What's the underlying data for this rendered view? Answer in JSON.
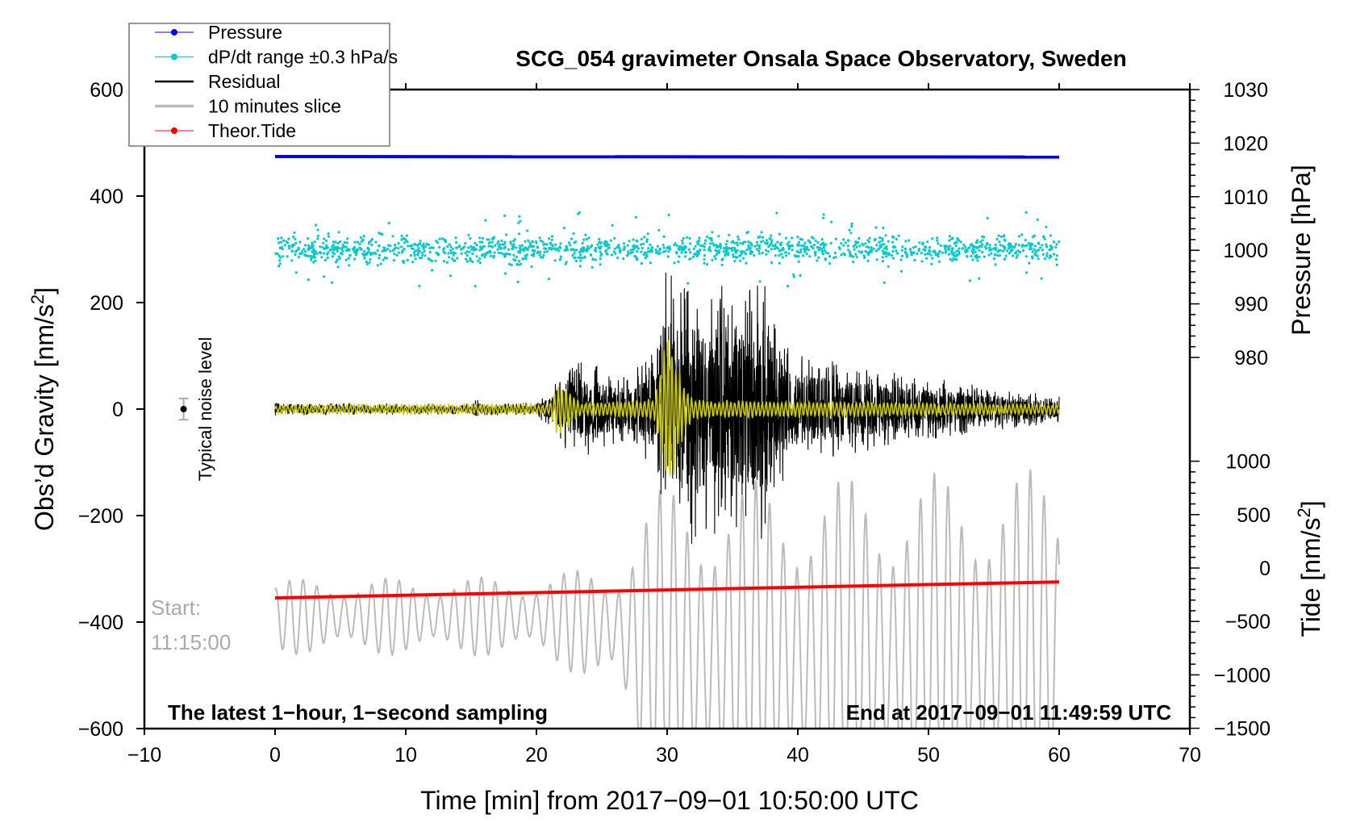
{
  "chart_data": {
    "type": "line",
    "title": "SCG_054 gravimeter Onsala Space Observatory, Sweden",
    "xlabel": "Time [min] from 2017−09−01 10:50:00 UTC",
    "ylabel": "Obs’d Gravity [nm/s",
    "ylabel_sup": "2",
    "ylabel_end": "]",
    "y2label": "Pressure [hPa]",
    "y3label": "Tide [nm/s",
    "y3label_sup": "2",
    "y3label_end": "]",
    "xlim": [
      -10,
      70
    ],
    "ylim": [
      -600,
      600
    ],
    "pressure_lim": [
      970,
      1030
    ],
    "tide_lim": [
      -1500,
      1500
    ],
    "x_ticks": [
      "−10",
      "0",
      "10",
      "20",
      "30",
      "40",
      "50",
      "60",
      "70"
    ],
    "x_tick_values": [
      -10,
      0,
      10,
      20,
      30,
      40,
      50,
      60,
      70
    ],
    "y_ticks": [
      "600",
      "400",
      "200",
      "0",
      "−200",
      "−400",
      "−600"
    ],
    "y_tick_values": [
      600,
      400,
      200,
      0,
      -200,
      -400,
      -600
    ],
    "pressure_ticks": [
      "1030",
      "1020",
      "1010",
      "1000",
      "990",
      "980"
    ],
    "pressure_tick_values": [
      1030,
      1020,
      1010,
      1000,
      990,
      980
    ],
    "tide_ticks": [
      "1000",
      "500",
      "0",
      "−500",
      "−1000",
      "−1500"
    ],
    "tide_tick_values": [
      1000,
      500,
      0,
      -500,
      -1000,
      -1500
    ],
    "legend": {
      "placement": "top-left",
      "entries": [
        {
          "label": "Pressure",
          "color": "#0000ff",
          "marker": true
        },
        {
          "label": "dP/dt range ±0.3 hPa/s",
          "color": "#00cccc",
          "marker": true
        },
        {
          "label": "Residual",
          "color": "#000000",
          "marker": false
        },
        {
          "label": "10 minutes slice",
          "color": "#bbbbbb",
          "marker": false
        },
        {
          "label": "Theor.Tide",
          "color": "#ff0000",
          "marker": true
        }
      ]
    },
    "series": [
      {
        "name": "Pressure",
        "unit": "hPa",
        "x_range": [
          0,
          60
        ],
        "start": 1017.5,
        "end": 1017.4
      },
      {
        "name": "dP/dt range",
        "unit": "nm/s2 (plot)",
        "x_range": [
          0,
          60
        ],
        "center": 300,
        "spread": 20,
        "outlier_max": 410,
        "outlier_min": 205
      },
      {
        "name": "Residual",
        "unit": "nm/s2",
        "amplitude_envelope": [
          [
            0,
            12
          ],
          [
            15,
            10
          ],
          [
            15.3,
            25
          ],
          [
            16,
            12
          ],
          [
            20,
            12
          ],
          [
            21,
            35
          ],
          [
            22,
            70
          ],
          [
            23,
            95
          ],
          [
            25,
            80
          ],
          [
            27,
            60
          ],
          [
            29,
            120
          ],
          [
            29.8,
            260
          ],
          [
            33,
            250
          ],
          [
            35,
            220
          ],
          [
            37.5,
            260
          ],
          [
            38.5,
            150
          ],
          [
            40,
            110
          ],
          [
            45,
            80
          ],
          [
            50,
            60
          ],
          [
            55,
            40
          ],
          [
            60,
            25
          ]
        ]
      },
      {
        "name": "Residual (filtered)",
        "color": "#cccc00",
        "amplitude_envelope": [
          [
            0,
            8
          ],
          [
            21,
            10
          ],
          [
            21.6,
            50
          ],
          [
            22.5,
            35
          ],
          [
            23.5,
            12
          ],
          [
            29,
            20
          ],
          [
            30.2,
            170
          ],
          [
            31,
            70
          ],
          [
            32,
            18
          ],
          [
            60,
            10
          ]
        ]
      },
      {
        "name": "10 minutes slice",
        "unit": "nm/s2 (plot)",
        "envelope": [
          [
            0,
            -390,
            70
          ],
          [
            20,
            -390,
            75
          ],
          [
            26,
            -410,
            120
          ],
          [
            28,
            -450,
            270
          ],
          [
            30,
            -470,
            330
          ],
          [
            60,
            -470,
            360
          ]
        ]
      },
      {
        "name": "Theor.Tide",
        "unit": "nm/s2 (tide)",
        "x": [
          0,
          60
        ],
        "y": [
          -280,
          -130
        ]
      }
    ],
    "annotations": {
      "noise_label": "Typical noise level",
      "noise_bar": {
        "x": -7,
        "y": 0,
        "err": 20
      },
      "start_label": "Start:",
      "start_time": "11:15:00",
      "bottom_left": "The latest 1−hour, 1−second sampling",
      "bottom_right": "End at 2017−09−01 11:49:59 UTC"
    }
  }
}
